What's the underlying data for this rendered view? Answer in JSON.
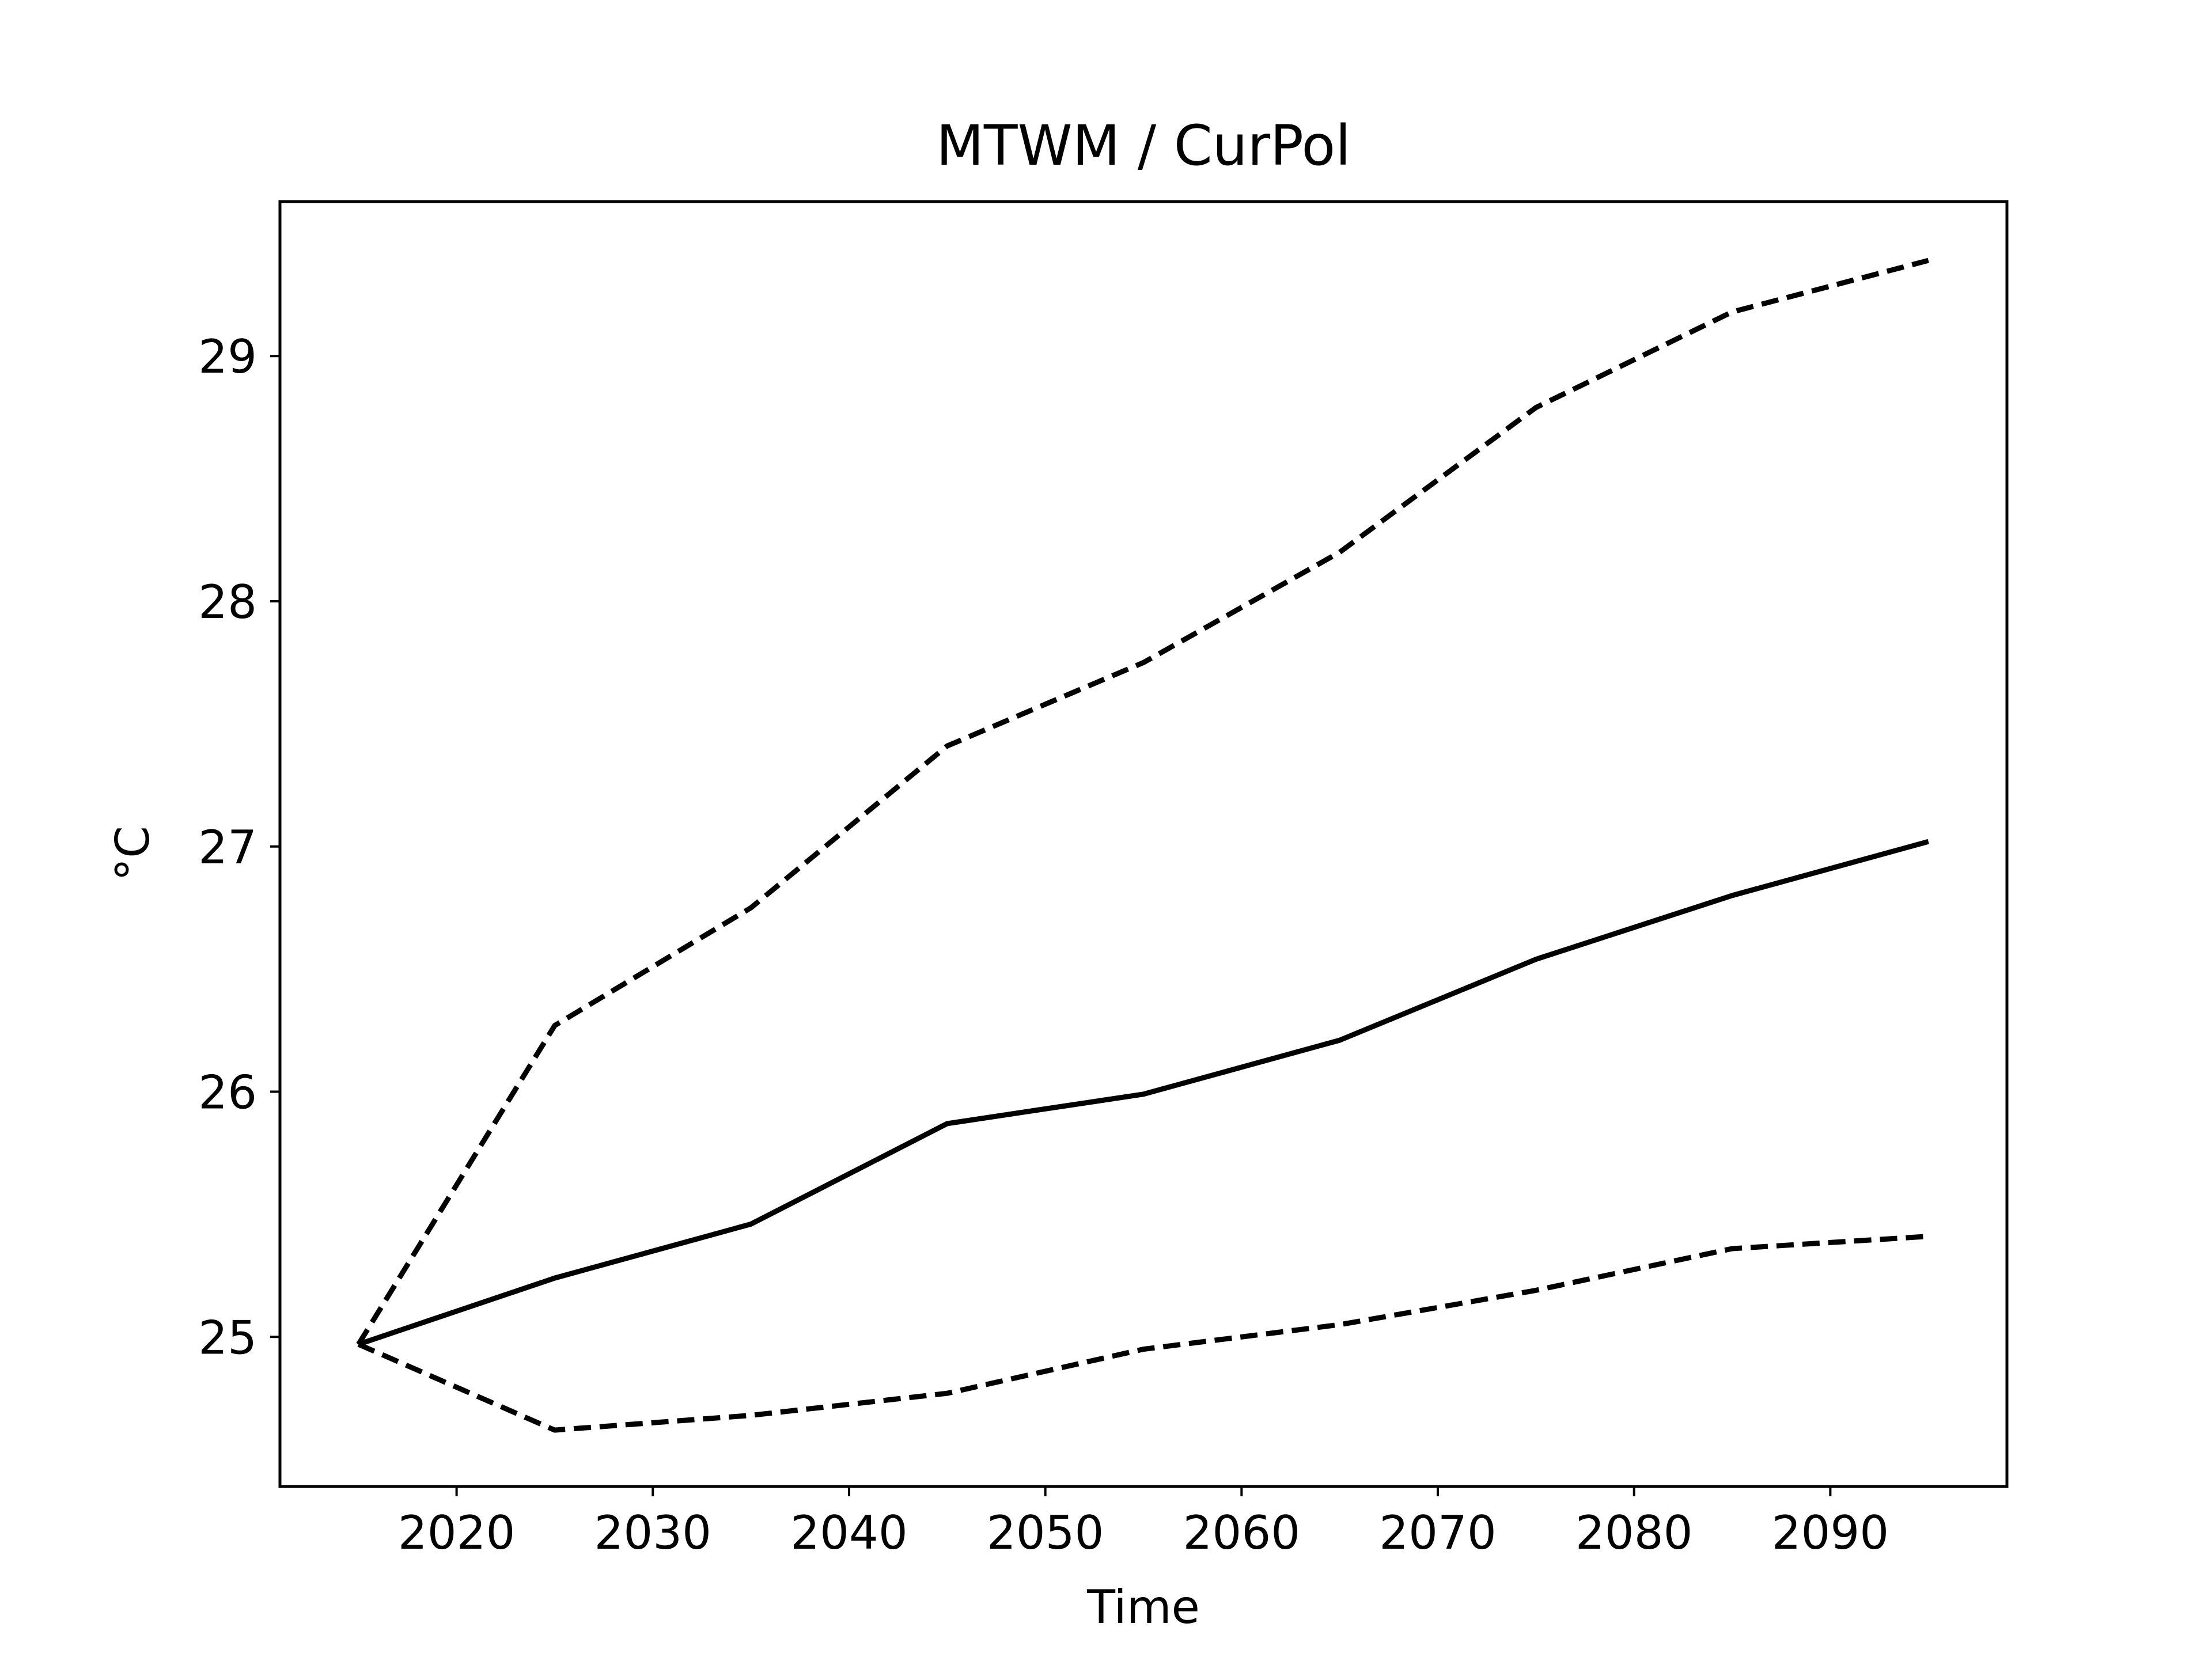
{
  "chart_data": {
    "type": "line",
    "title": "MTWM / CurPol",
    "xlabel": "Time",
    "ylabel": "°C",
    "xlim": [
      2011,
      2099
    ],
    "ylim": [
      24.39,
      29.63
    ],
    "xticks": [
      2020,
      2030,
      2040,
      2050,
      2060,
      2070,
      2080,
      2090
    ],
    "yticks": [
      25,
      26,
      27,
      28,
      29
    ],
    "x": [
      2015,
      2025,
      2035,
      2045,
      2055,
      2065,
      2075,
      2085,
      2095
    ],
    "grid": false,
    "legend": "none",
    "series": [
      {
        "style": "solid",
        "color": "#000000",
        "values": [
          24.97,
          25.24,
          25.46,
          25.87,
          25.99,
          26.21,
          26.54,
          26.8,
          27.02
        ]
      },
      {
        "style": "dashed",
        "color": "#000000",
        "values": [
          24.97,
          26.27,
          26.75,
          27.41,
          27.75,
          28.2,
          28.79,
          29.18,
          29.39
        ]
      },
      {
        "style": "dashed",
        "color": "#000000",
        "values": [
          24.97,
          24.62,
          24.68,
          24.77,
          24.95,
          25.05,
          25.19,
          25.36,
          25.41
        ]
      }
    ]
  }
}
